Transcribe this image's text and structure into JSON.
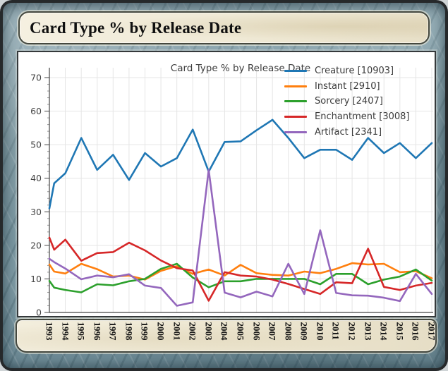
{
  "card": {
    "title": "Card Type % by Release Date"
  },
  "plot": {
    "title": "Card Type % by Release Date"
  },
  "colors": {
    "creature": "#1f77b4",
    "instant": "#ff7f0e",
    "sorcery": "#2ca02c",
    "enchantment": "#d62728",
    "artifact": "#9467bd",
    "axis": "#444444",
    "grid": "#e5e5e5",
    "tick_label": "#444444"
  },
  "chart_data": {
    "type": "line",
    "title": "Card Type % by Release Date",
    "xlabel": "",
    "ylabel": "",
    "xlim": [
      1993,
      2017
    ],
    "ylim": [
      0,
      72.5
    ],
    "grid": true,
    "legend_position": "top-right",
    "y_ticks": [
      0,
      10,
      20,
      30,
      40,
      50,
      60,
      70
    ],
    "x_tick_labels": [
      "1993",
      "1994",
      "1995",
      "1996",
      "1997",
      "1998",
      "1999",
      "2000",
      "2001",
      "2002",
      "2003",
      "2004",
      "2005",
      "2006",
      "2007",
      "2008",
      "2009",
      "2010",
      "2011",
      "2012",
      "2013",
      "2014",
      "2015",
      "2016",
      "2017"
    ],
    "x": [
      1993,
      1993.3,
      1994,
      1995,
      1996,
      1997,
      1998,
      1999,
      2000,
      2001,
      2002,
      2003,
      2004,
      2005,
      2006,
      2007,
      2008,
      2009,
      2010,
      2011,
      2012,
      2013,
      2014,
      2015,
      2016,
      2017
    ],
    "series": [
      {
        "name": "Creature [10903]",
        "key": "creature",
        "color": "#1f77b4",
        "values": [
          31,
          38.5,
          41.5,
          52,
          42.5,
          47,
          39.5,
          47.5,
          43.5,
          46,
          54.5,
          42,
          50.8,
          51,
          54.3,
          57.4,
          52,
          46,
          48.5,
          48.5,
          45.5,
          52,
          47.5,
          50.5,
          46,
          50.5
        ]
      },
      {
        "name": "Instant [2910]",
        "key": "instant",
        "color": "#ff7f0e",
        "values": [
          14.3,
          12.2,
          11.6,
          14.5,
          12.9,
          10.7,
          11,
          9.8,
          12.4,
          13.8,
          11.5,
          12.8,
          11,
          14.2,
          11.7,
          11.2,
          11,
          12.2,
          11.7,
          13,
          14.7,
          14.3,
          14.5,
          12,
          12.3,
          10.2
        ]
      },
      {
        "name": "Sorcery [2407]",
        "key": "sorcery",
        "color": "#2ca02c",
        "values": [
          9.4,
          7.4,
          6.7,
          6,
          8.4,
          8.1,
          9.3,
          10,
          13,
          14.5,
          10.4,
          7.5,
          9.3,
          9.3,
          10,
          10,
          10,
          10,
          8.4,
          11.5,
          11.5,
          8.4,
          9.8,
          10.7,
          12.8,
          9.5
        ]
      },
      {
        "name": "Enchantment [3008]",
        "key": "enchantment",
        "color": "#d62728",
        "values": [
          22.3,
          18.7,
          21.7,
          15.4,
          17.7,
          18,
          20.8,
          18.5,
          15.5,
          13.2,
          12.5,
          3.5,
          12,
          11,
          10.7,
          9.8,
          8.5,
          7,
          5.5,
          9,
          8.7,
          19,
          7.6,
          6.7,
          8,
          8.8
        ]
      },
      {
        "name": "Artifact [2341]",
        "key": "artifact",
        "color": "#9467bd",
        "values": [
          16,
          15,
          13.1,
          9.9,
          11,
          10.5,
          11.4,
          8,
          7.3,
          2,
          3,
          42.5,
          5.9,
          4.5,
          6.2,
          4.8,
          14.5,
          5.5,
          24.5,
          5.8,
          5.1,
          5,
          4.4,
          3.4,
          11.5,
          5.5
        ]
      }
    ]
  }
}
